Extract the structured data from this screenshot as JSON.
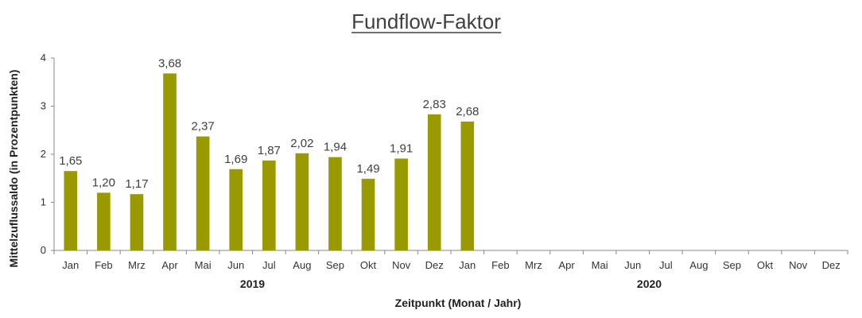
{
  "chart_data": {
    "type": "bar",
    "title": "Fundflow-Faktor",
    "xlabel": "Zeitpunkt (Monat / Jahr)",
    "ylabel": "Mittelzuflussaldo (in Prozentpunkten)",
    "ylim": [
      0,
      4
    ],
    "yticks": [
      "0",
      "1",
      "2",
      "3",
      "4"
    ],
    "categories": [
      "Jan",
      "Feb",
      "Mrz",
      "Apr",
      "Mai",
      "Jun",
      "Jul",
      "Aug",
      "Sep",
      "Okt",
      "Nov",
      "Dez",
      "Jan",
      "Feb",
      "Mrz",
      "Apr",
      "Mai",
      "Jun",
      "Jul",
      "Aug",
      "Sep",
      "Okt",
      "Nov",
      "Dez"
    ],
    "values": [
      1.65,
      1.2,
      1.17,
      3.68,
      2.37,
      1.69,
      1.87,
      2.02,
      1.94,
      1.49,
      1.91,
      2.83,
      2.68,
      null,
      null,
      null,
      null,
      null,
      null,
      null,
      null,
      null,
      null,
      null
    ],
    "value_labels": [
      "1,65",
      "1,20",
      "1,17",
      "3,68",
      "2,37",
      "1,69",
      "1,87",
      "2,02",
      "1,94",
      "1,49",
      "1,91",
      "2,83",
      "2,68",
      "",
      "",
      "",
      "",
      "",
      "",
      "",
      "",
      "",
      "",
      ""
    ],
    "groups": [
      {
        "label": "2019",
        "start": 0,
        "end": 11
      },
      {
        "label": "2020",
        "start": 12,
        "end": 23
      }
    ],
    "bar_color": "#999900",
    "grid": false,
    "legend": "none"
  }
}
